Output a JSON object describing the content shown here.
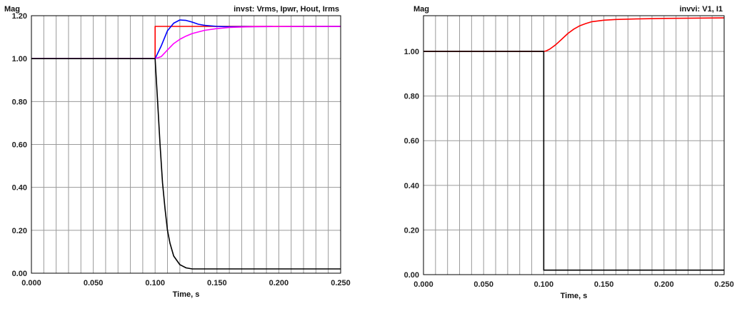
{
  "chart_data": [
    {
      "type": "line",
      "title": "invst:  Vrms, Ipwr, Hout, Irms",
      "ylabel": "Mag",
      "xlabel": "Time, s",
      "xlim": [
        0,
        0.25
      ],
      "ylim": [
        0,
        1.2
      ],
      "xticks": [
        "0.000",
        "0.050",
        "0.100",
        "0.150",
        "0.200",
        "0.250"
      ],
      "yticks": [
        "0.00",
        "0.20",
        "0.40",
        "0.60",
        "0.80",
        "1.00",
        "1.20"
      ],
      "grid": true,
      "series": [
        {
          "color": "#ff0000",
          "x": [
            0,
            0.1,
            0.1,
            0.25
          ],
          "y": [
            1.0,
            1.0,
            1.15,
            1.15
          ]
        },
        {
          "color": "#0000ff",
          "x": [
            0,
            0.1,
            0.105,
            0.11,
            0.115,
            0.12,
            0.125,
            0.13,
            0.135,
            0.14,
            0.15,
            0.16,
            0.18,
            0.25
          ],
          "y": [
            1.0,
            1.0,
            1.06,
            1.13,
            1.165,
            1.18,
            1.178,
            1.17,
            1.16,
            1.155,
            1.15,
            1.148,
            1.149,
            1.15
          ]
        },
        {
          "color": "#ff00ff",
          "x": [
            0,
            0.1,
            0.105,
            0.11,
            0.115,
            0.12,
            0.125,
            0.13,
            0.14,
            0.15,
            0.16,
            0.18,
            0.25
          ],
          "y": [
            1.0,
            1.0,
            1.01,
            1.04,
            1.07,
            1.09,
            1.105,
            1.117,
            1.132,
            1.14,
            1.145,
            1.149,
            1.15
          ]
        },
        {
          "color": "#000000",
          "x": [
            0,
            0.1,
            0.102,
            0.104,
            0.106,
            0.108,
            0.11,
            0.112,
            0.115,
            0.12,
            0.125,
            0.13,
            0.25
          ],
          "y": [
            1.0,
            1.0,
            0.8,
            0.6,
            0.42,
            0.3,
            0.2,
            0.14,
            0.08,
            0.04,
            0.025,
            0.02,
            0.02
          ]
        }
      ]
    },
    {
      "type": "line",
      "title": "invvi:  V1,  I1",
      "ylabel": "Mag",
      "xlabel": "Time, s",
      "xlim": [
        0,
        0.25
      ],
      "ylim": [
        0,
        1.16
      ],
      "xticks": [
        "0.000",
        "0.050",
        "0.100",
        "0.150",
        "0.200",
        "0.250"
      ],
      "yticks": [
        "0.00",
        "0.20",
        "0.40",
        "0.60",
        "0.80",
        "1.00"
      ],
      "grid": true,
      "series": [
        {
          "color": "#ff0000",
          "x": [
            0,
            0.1,
            0.102,
            0.105,
            0.11,
            0.115,
            0.12,
            0.125,
            0.13,
            0.135,
            0.14,
            0.15,
            0.16,
            0.18,
            0.2,
            0.25
          ],
          "y": [
            1.0,
            1.0,
            1.002,
            1.01,
            1.03,
            1.055,
            1.08,
            1.1,
            1.115,
            1.125,
            1.133,
            1.14,
            1.143,
            1.146,
            1.148,
            1.15
          ]
        },
        {
          "color": "#000000",
          "x": [
            0,
            0.1,
            0.1,
            0.25
          ],
          "y": [
            1.0,
            1.0,
            0.02,
            0.02
          ]
        }
      ]
    }
  ]
}
